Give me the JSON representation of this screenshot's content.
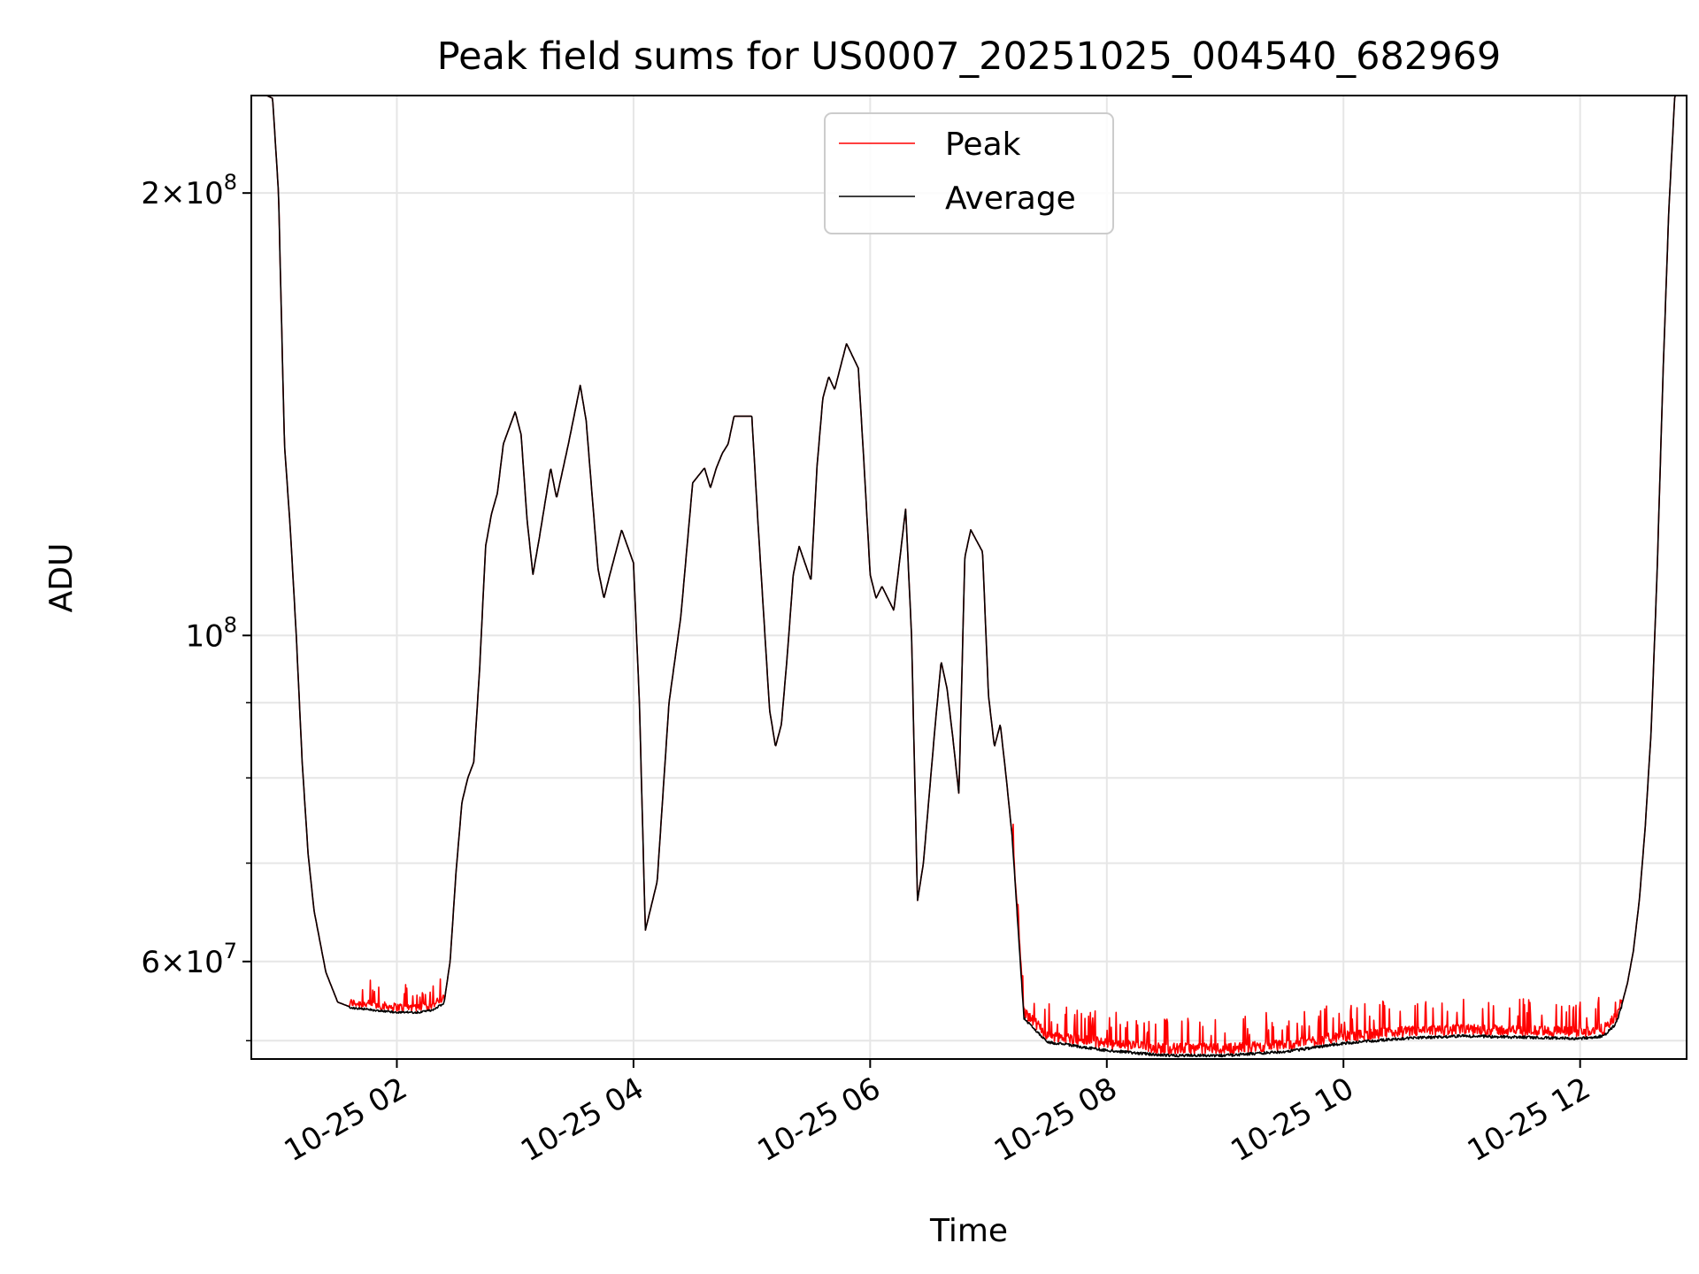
{
  "chart_data": {
    "type": "line",
    "title": "Peak field sums for US0007_20251025_004540_682969",
    "xlabel": "Time",
    "ylabel": "ADU",
    "yscale": "log",
    "grid": true,
    "legend_position": "upper-center",
    "x_unit": "hours since 2025-10-25 00:00",
    "xlim": [
      0.77,
      12.9
    ],
    "ylim": [
      51500000,
      233000000
    ],
    "x_ticks": [
      {
        "x": 2,
        "label": "10-25 02"
      },
      {
        "x": 4,
        "label": "10-25 04"
      },
      {
        "x": 6,
        "label": "10-25 06"
      },
      {
        "x": 8,
        "label": "10-25 08"
      },
      {
        "x": 10,
        "label": "10-25 10"
      },
      {
        "x": 12,
        "label": "10-25 12"
      }
    ],
    "y_major_ticks": [
      {
        "y": 60000000,
        "base": "6×10",
        "exp": "7"
      },
      {
        "y": 100000000,
        "base": "10",
        "exp": "8"
      },
      {
        "y": 200000000,
        "base": "2×10",
        "exp": "8"
      }
    ],
    "y_minor_ticks": [
      53000000,
      70000000,
      80000000,
      90000000
    ],
    "series": [
      {
        "name": "Peak",
        "color": "#ff0000",
        "noise_above_average": [
          {
            "from": 1.6,
            "to": 2.4,
            "amount": 1200000
          },
          {
            "from": 7.2,
            "to": 12.35,
            "amount": 1500000
          }
        ]
      },
      {
        "name": "Average",
        "color": "#000000",
        "x": [
          0.77,
          0.9,
          0.95,
          1.0,
          1.05,
          1.1,
          1.15,
          1.2,
          1.25,
          1.3,
          1.4,
          1.5,
          1.6,
          1.8,
          2.0,
          2.2,
          2.3,
          2.4,
          2.45,
          2.5,
          2.55,
          2.6,
          2.65,
          2.7,
          2.75,
          2.8,
          2.85,
          2.9,
          3.0,
          3.05,
          3.1,
          3.15,
          3.2,
          3.3,
          3.35,
          3.45,
          3.55,
          3.6,
          3.7,
          3.75,
          3.8,
          3.9,
          4.0,
          4.05,
          4.1,
          4.2,
          4.3,
          4.4,
          4.5,
          4.6,
          4.65,
          4.7,
          4.75,
          4.8,
          4.85,
          5.0,
          5.05,
          5.15,
          5.2,
          5.25,
          5.3,
          5.35,
          5.4,
          5.5,
          5.55,
          5.6,
          5.65,
          5.7,
          5.8,
          5.9,
          5.95,
          6.0,
          6.05,
          6.1,
          6.2,
          6.3,
          6.35,
          6.4,
          6.45,
          6.55,
          6.6,
          6.65,
          6.7,
          6.75,
          6.8,
          6.85,
          6.95,
          7.0,
          7.05,
          7.1,
          7.15,
          7.2,
          7.3,
          7.5,
          8.0,
          8.5,
          9.0,
          9.5,
          10.0,
          10.5,
          11.0,
          11.5,
          12.0,
          12.2,
          12.3,
          12.35,
          12.4,
          12.45,
          12.5,
          12.55,
          12.6,
          12.65,
          12.7,
          12.75,
          12.8,
          12.9
        ],
        "y": [
          233000000,
          233000000,
          232000000,
          200000000,
          135000000,
          118000000,
          100000000,
          82000000,
          71000000,
          65000000,
          59000000,
          56300000,
          55900000,
          55700000,
          55500000,
          55500000,
          55700000,
          56300000,
          60000000,
          69000000,
          77000000,
          80000000,
          82000000,
          95000000,
          115000000,
          121000000,
          125000000,
          135000000,
          142000000,
          137000000,
          120000000,
          110000000,
          116000000,
          130000000,
          124000000,
          135000000,
          148000000,
          140000000,
          111000000,
          106000000,
          110000000,
          118000000,
          112000000,
          90000000,
          63000000,
          68000000,
          90000000,
          103000000,
          127000000,
          130000000,
          126000000,
          130000000,
          133000000,
          135000000,
          141000000,
          141000000,
          120000000,
          89000000,
          84000000,
          87000000,
          97000000,
          110000000,
          115000000,
          109000000,
          130000000,
          145000000,
          150000000,
          147000000,
          158000000,
          152000000,
          130000000,
          110000000,
          106000000,
          108000000,
          104000000,
          122000000,
          100000000,
          66000000,
          70000000,
          87000000,
          96000000,
          92000000,
          85000000,
          78000000,
          113000000,
          118000000,
          114000000,
          91000000,
          84000000,
          87000000,
          80000000,
          73000000,
          55000000,
          53000000,
          52300000,
          51900000,
          51900000,
          52200000,
          52900000,
          53300000,
          53500000,
          53400000,
          53300000,
          53500000,
          54500000,
          56000000,
          58000000,
          61000000,
          66000000,
          74000000,
          86000000,
          110000000,
          150000000,
          195000000,
          233000000,
          233000000
        ]
      }
    ]
  }
}
